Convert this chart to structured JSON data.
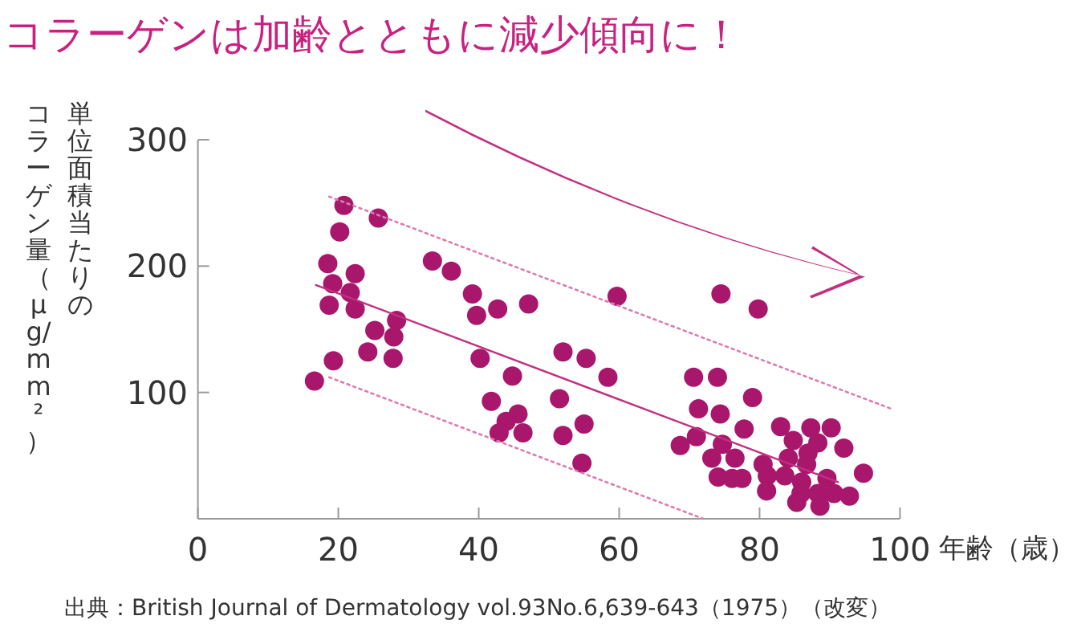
{
  "chart_data": {
    "type": "scatter",
    "title": "コラーゲンは加齢とともに減少傾向に！",
    "xlabel": "年齢（歳）",
    "ylabel": "単位面積当たりのコラーゲン量（μg/mm²）",
    "annotations": [
      "出典：British Journal of Dermatology vol.93No.6,639-643（1975）（改変）"
    ],
    "xlim": [
      0,
      100
    ],
    "xticks": [
      0,
      20,
      40,
      60,
      80,
      100
    ],
    "ylim": [
      0,
      300
    ],
    "yticks": [
      100,
      200,
      300
    ],
    "grid": false,
    "series": [
      {
        "color": "#a8176c",
        "marker": "circle",
        "x": [
          20.8,
          25.7,
          20.2,
          18.5,
          33.4,
          36.1,
          22.4,
          19.2,
          21.7,
          39.1,
          59.7,
          18.7,
          22.4,
          42.7,
          47.1,
          39.7,
          28.3,
          25.2,
          27.9,
          24.2,
          27.8,
          19.3,
          52.0,
          55.3,
          40.2,
          58.4,
          16.6,
          44.8,
          51.5,
          41.8,
          45.6,
          43.9,
          55.0,
          42.9,
          46.3,
          52.0,
          54.7,
          74.5,
          79.8,
          70.6,
          74.0,
          79.0,
          71.3,
          74.4,
          77.8,
          83.0,
          87.3,
          90.2,
          68.7,
          71.0,
          74.7,
          84.8,
          88.3,
          92.0,
          73.2,
          76.5,
          84.1,
          86.9,
          80.5,
          86.7,
          74.1,
          76.1,
          77.5,
          81.1,
          83.6,
          89.6,
          94.8,
          86.0,
          81.0,
          85.9,
          88.3,
          90.6,
          92.8,
          85.3,
          88.6
        ],
        "values": [
          248,
          238,
          227,
          202,
          204,
          196,
          194,
          186,
          179,
          178,
          176,
          169,
          166,
          166,
          170,
          161,
          157,
          149,
          144,
          132,
          127,
          125,
          132,
          127,
          127,
          112,
          109,
          113,
          95,
          93,
          83,
          77,
          75,
          68,
          68,
          66,
          44,
          178,
          166,
          112,
          112,
          96,
          87,
          83,
          71,
          73,
          72,
          72,
          58,
          65,
          59,
          62,
          60,
          56,
          48,
          48,
          48,
          52,
          43,
          43,
          33,
          32,
          32,
          34,
          34,
          32,
          36,
          29,
          22,
          20,
          20,
          20,
          18,
          13,
          10
        ]
      },
      {
        "type": "line",
        "color": "#c2307f",
        "line_style": "solid",
        "marker": "none",
        "x": [
          16.8,
          91.2
        ],
        "values": [
          185,
          29
        ]
      },
      {
        "type": "line",
        "color": "#dc7cb0",
        "line_style": "dotted",
        "marker": "none",
        "x": [
          18.7,
          98.8
        ],
        "values": [
          255,
          87
        ]
      },
      {
        "type": "line",
        "color": "#dc7cb0",
        "line_style": "dotted",
        "marker": "none",
        "x": [
          18.7,
          72
        ],
        "values": [
          112,
          0
        ]
      }
    ]
  }
}
